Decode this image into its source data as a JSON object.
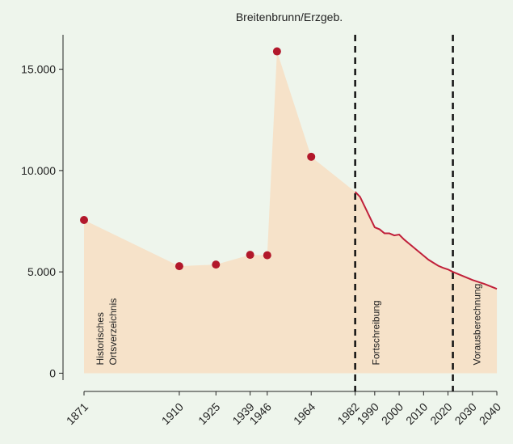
{
  "chart_data": {
    "type": "area-line",
    "title": "Breitenbrunn/Erzgeb.",
    "series": [
      {
        "name": "Historisches Ortsverzeichnis",
        "color": "#b2182b",
        "x": [
          1871,
          1910,
          1925,
          1939,
          1946,
          1950,
          1964
        ],
        "values": [
          7560,
          5280,
          5360,
          5840,
          5820,
          15880,
          10680
        ]
      },
      {
        "name": "Fortschreibung",
        "color": "#c0203a",
        "x": [
          1982,
          1984,
          1986,
          1988,
          1990,
          1992,
          1994,
          1996,
          1998,
          2000,
          2002,
          2004,
          2006,
          2008,
          2010,
          2012,
          2014,
          2016,
          2018,
          2020,
          2022,
          2025,
          2030,
          2035,
          2040
        ],
        "values": [
          8950,
          8700,
          8200,
          7700,
          7200,
          7100,
          6900,
          6900,
          6800,
          6840,
          6600,
          6400,
          6200,
          6000,
          5800,
          5600,
          5450,
          5300,
          5200,
          5120,
          5000,
          4850,
          4600,
          4400,
          4160
        ]
      }
    ],
    "area_color": "#f6e2c9",
    "annotations": [
      [
        "Historisches",
        "Ortsverzeichnis"
      ],
      [
        "Fortschreibung"
      ],
      [
        "Vorausberechnung"
      ]
    ],
    "vlines": [
      1982,
      2022
    ],
    "xlim": [
      1862.4,
      2043.3
    ],
    "xticks": [
      1871,
      1910,
      1925,
      1939,
      1946,
      1964,
      1982,
      1990,
      2000,
      2010,
      2020,
      2030,
      2040
    ],
    "ylim": [
      -900,
      16700
    ],
    "yticks": [
      0,
      {
        "value": 5000,
        "label": "5.000"
      },
      {
        "value": 10000,
        "label": "10.000"
      },
      {
        "value": 15000,
        "label": "15.000"
      }
    ]
  }
}
